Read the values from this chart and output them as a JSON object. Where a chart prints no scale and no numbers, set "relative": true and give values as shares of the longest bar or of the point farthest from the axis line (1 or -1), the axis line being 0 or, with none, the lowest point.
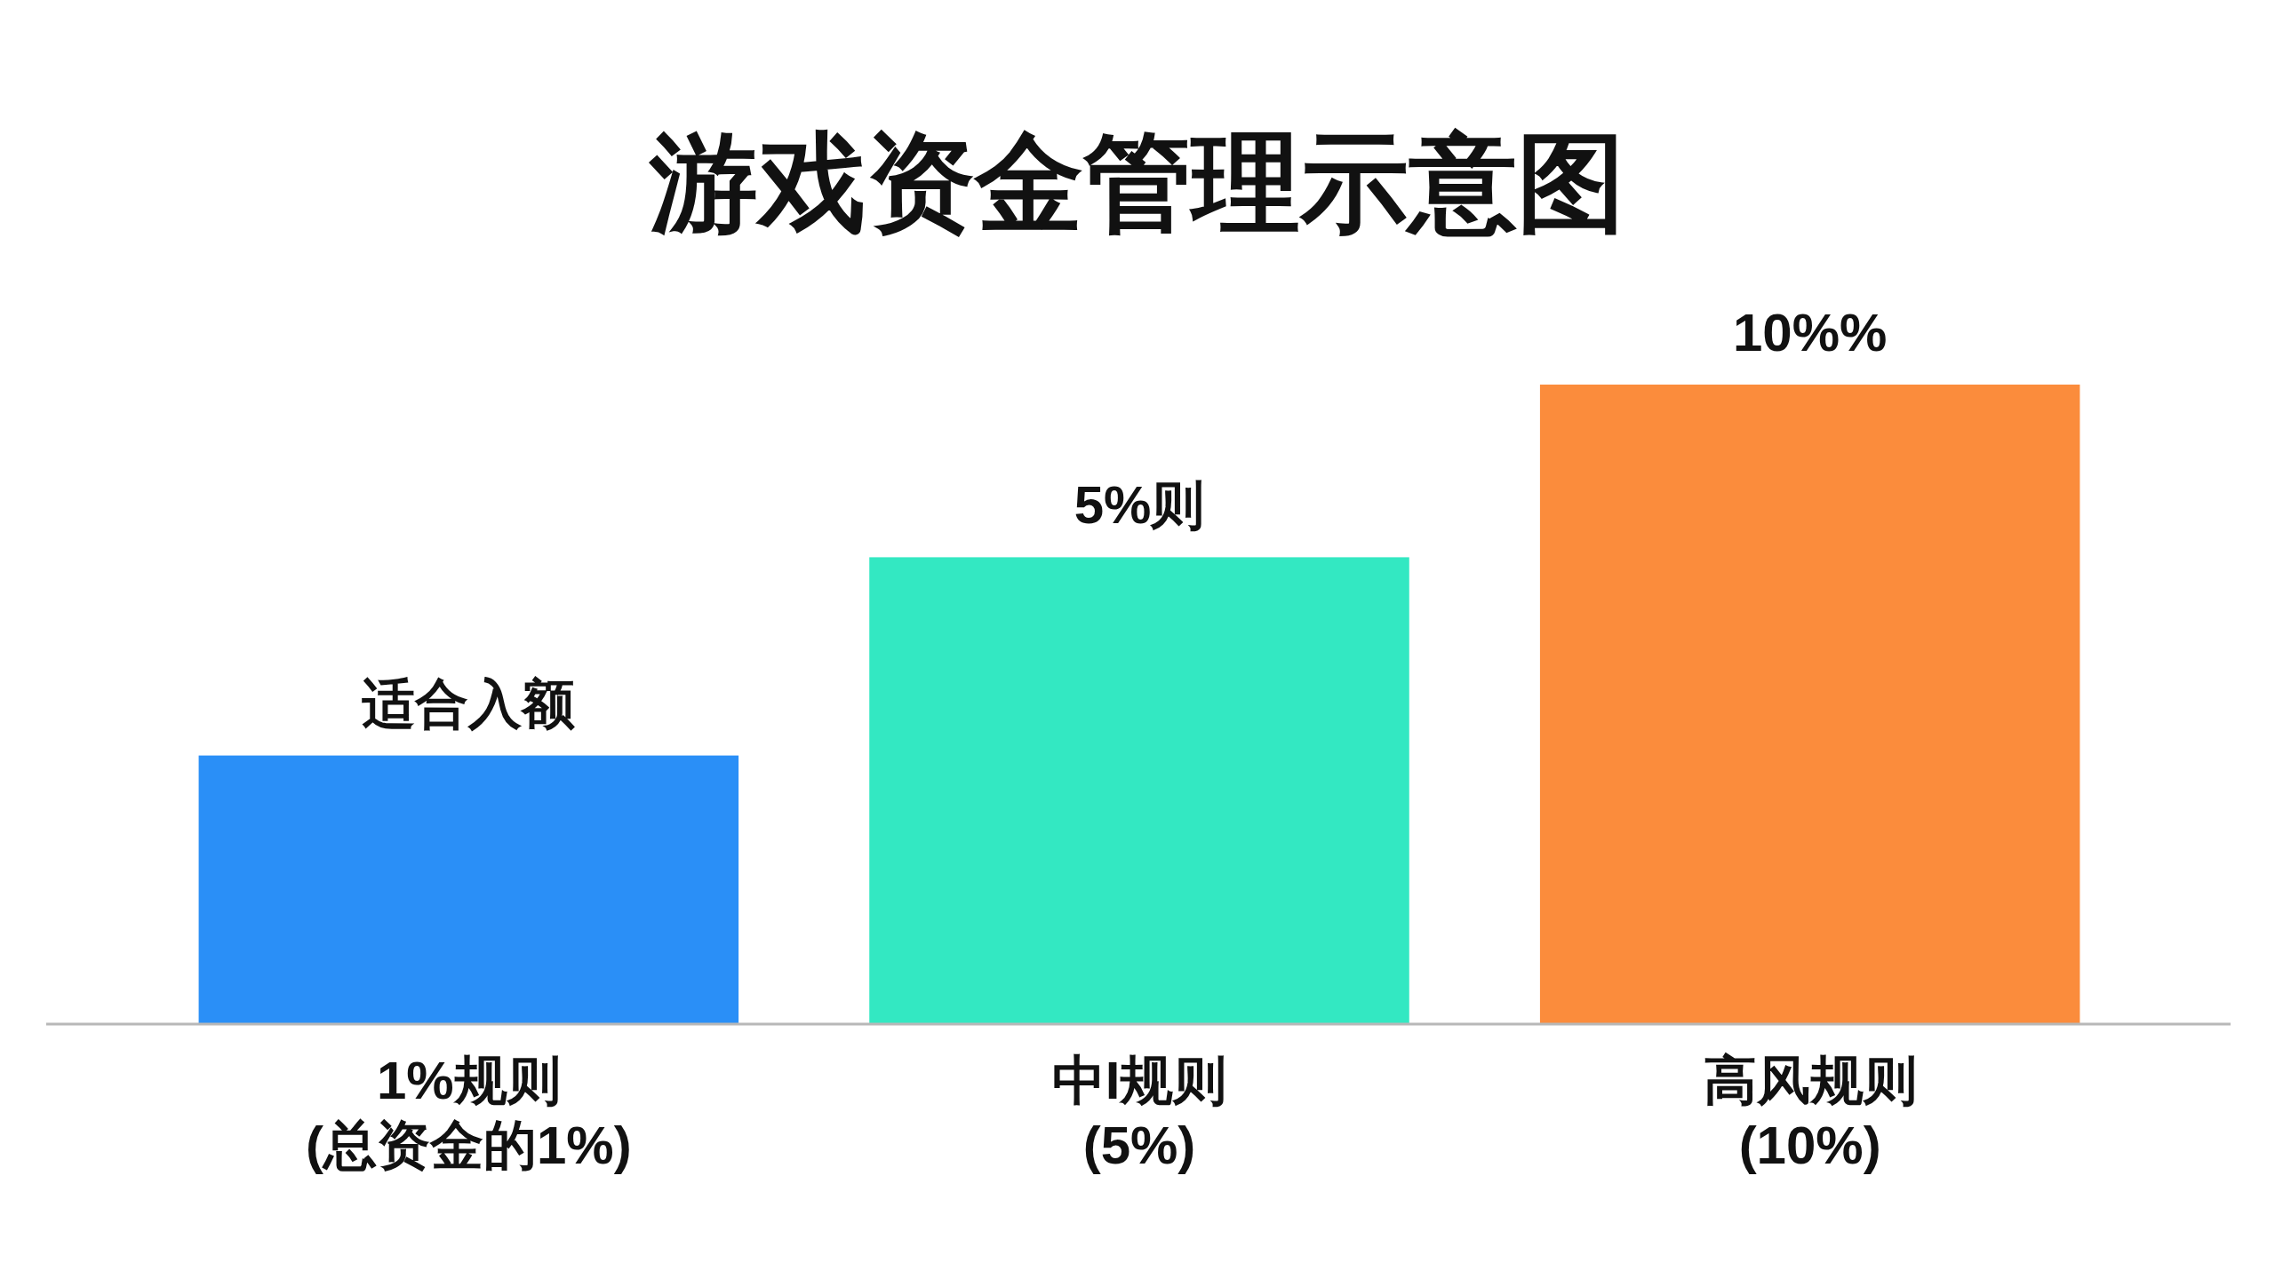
{
  "chart_data": {
    "type": "bar",
    "title": "游戏资金管理示意图",
    "categories": [
      "1%规则\n(总资金的1%)",
      "中I规则\n(5%)",
      "高风规则\n(10%)"
    ],
    "values": [
      0.42,
      0.73,
      1.0
    ],
    "colors": [
      "#2a8ff7",
      "#33e8c2",
      "#fb8c3c"
    ],
    "annotations": [
      {
        "text": "适合入额",
        "x": "1%规则\n(总资金的1%)",
        "y": 0.42
      },
      {
        "text": "5%则",
        "x": "中I规则\n(5%)",
        "y": 0.73
      },
      {
        "text": "10%%",
        "x": "高风规则\n(10%)",
        "y": 1.0
      }
    ],
    "relative": true
  }
}
